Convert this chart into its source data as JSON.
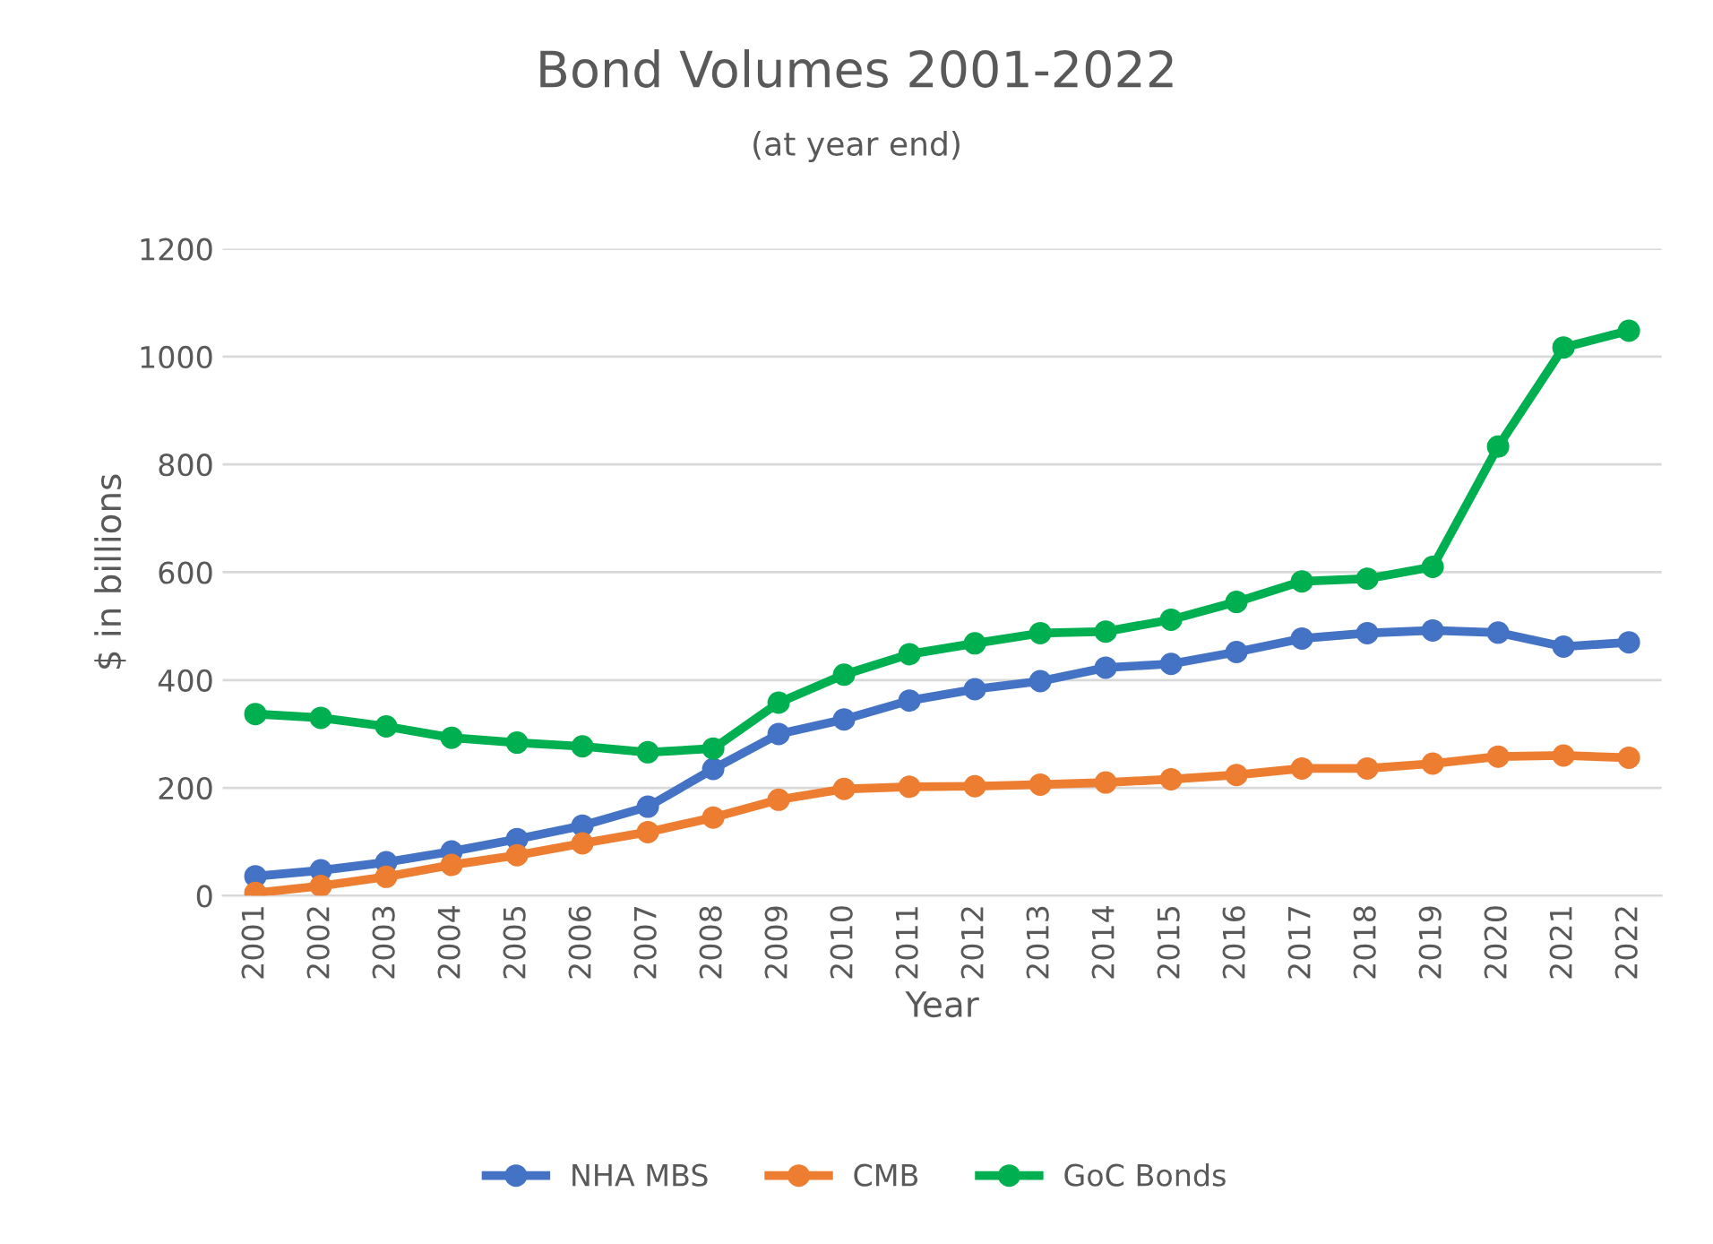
{
  "chart_data": {
    "type": "line",
    "title": "Bond Volumes 2001-2022",
    "subtitle": "(at year end)",
    "xlabel": "Year",
    "ylabel": "$ in billions",
    "categories": [
      "2001",
      "2002",
      "2003",
      "2004",
      "2005",
      "2006",
      "2007",
      "2008",
      "2009",
      "2010",
      "2011",
      "2012",
      "2013",
      "2014",
      "2015",
      "2016",
      "2017",
      "2018",
      "2019",
      "2020",
      "2021",
      "2022"
    ],
    "series": [
      {
        "name": "NHA MBS",
        "color": "#4472c4",
        "values": [
          36,
          47,
          62,
          82,
          105,
          130,
          165,
          235,
          300,
          327,
          362,
          383,
          398,
          423,
          430,
          452,
          477,
          487,
          492,
          488,
          462,
          470
        ]
      },
      {
        "name": "CMB",
        "color": "#ed7d31",
        "values": [
          5,
          18,
          35,
          57,
          75,
          97,
          118,
          145,
          178,
          198,
          202,
          203,
          206,
          210,
          216,
          224,
          236,
          236,
          245,
          258,
          260,
          256
        ]
      },
      {
        "name": "GoC Bonds",
        "color": "#00b050",
        "values": [
          337,
          330,
          314,
          293,
          284,
          277,
          266,
          273,
          358,
          410,
          448,
          468,
          487,
          490,
          512,
          545,
          583,
          588,
          610,
          833,
          1017,
          1048
        ]
      }
    ],
    "ylim": [
      0,
      1200
    ],
    "yticks": [
      0,
      200,
      400,
      600,
      800,
      1000,
      1200
    ],
    "grid": "y",
    "legend": "bottom",
    "marker": "circle",
    "line_style": "solid"
  }
}
